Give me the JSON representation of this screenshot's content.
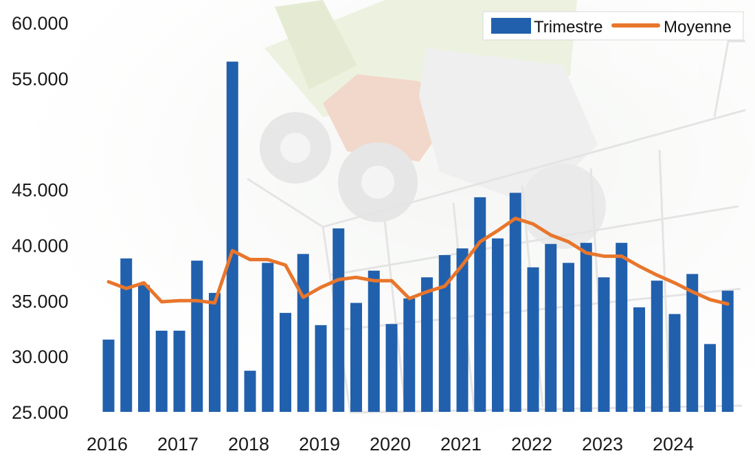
{
  "chart_data": {
    "type": "bar",
    "x_tick_labels": [
      "2016",
      "2017",
      "2018",
      "2019",
      "2020",
      "2021",
      "2022",
      "2023",
      "2024"
    ],
    "y_tick_labels": [
      "25.000",
      "30.000",
      "35.000",
      "40.000",
      "45.000",
      "55.000",
      "60.000"
    ],
    "y_tick_values": [
      25000,
      30000,
      35000,
      40000,
      45000,
      55000,
      60000
    ],
    "ylim": [
      25000,
      60000
    ],
    "grid": false,
    "legend_position": "top-right",
    "series": [
      {
        "name": "Trimestre",
        "type": "bar",
        "color": "#2160ad",
        "values": [
          31500,
          38800,
          36400,
          32300,
          32300,
          38600,
          35700,
          56500,
          28700,
          38400,
          33900,
          39200,
          32800,
          41500,
          34800,
          37700,
          32900,
          35200,
          37100,
          39100,
          39700,
          44300,
          40600,
          44700,
          38000,
          40100,
          38400,
          40200,
          37100,
          40200,
          34400,
          36800,
          33800,
          37400,
          31100,
          35900
        ]
      },
      {
        "name": "Moyenne",
        "type": "line",
        "color": "#e8762c",
        "values": [
          36700,
          36100,
          36600,
          34900,
          35000,
          35000,
          34800,
          39500,
          38700,
          38700,
          38200,
          35300,
          36200,
          36900,
          37100,
          36800,
          36800,
          35200,
          35800,
          36300,
          38200,
          40300,
          41300,
          42400,
          41900,
          40900,
          40300,
          39300,
          39000,
          39000,
          38100,
          37300,
          36600,
          35800,
          35100,
          34700
        ]
      }
    ]
  }
}
